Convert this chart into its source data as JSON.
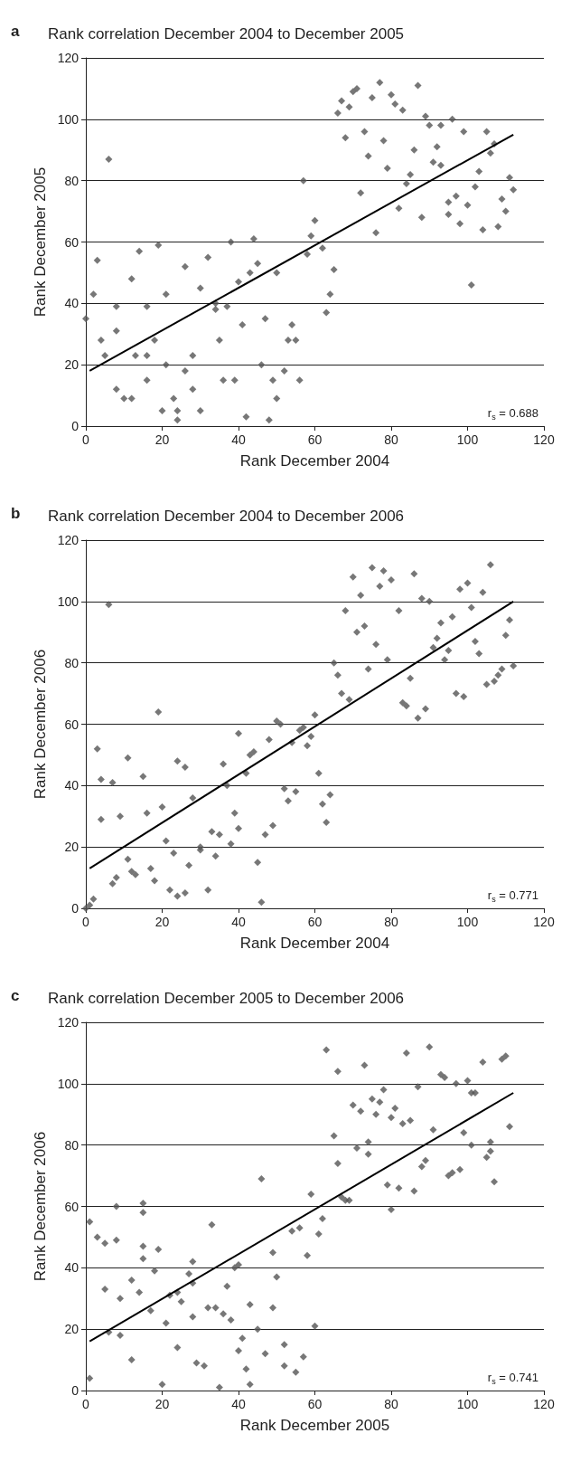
{
  "chart_data": [
    {
      "type": "scatter",
      "title": "Rank correlation December 2004 to December 2005",
      "xlabel": "Rank December 2004",
      "ylabel": "Rank December 2005",
      "annotations": [
        "a",
        "r$_{s}$ = 0.688"
      ],
      "xlim": [
        0,
        120
      ],
      "ylim": [
        0,
        120
      ],
      "xticks": [
        0,
        20,
        40,
        60,
        80,
        100,
        120
      ],
      "yticks": [
        0,
        20,
        40,
        60,
        80,
        100,
        120
      ],
      "grid": "y",
      "marker": "diamond",
      "series": [
        {
          "color": "#555555",
          "x": [
            0,
            2,
            3,
            4,
            5,
            6,
            8,
            8,
            8,
            10,
            12,
            12,
            13,
            14,
            16,
            16,
            16,
            18,
            19,
            20,
            21,
            21,
            23,
            24,
            24,
            26,
            26,
            28,
            28,
            30,
            30,
            32,
            34,
            34,
            35,
            36,
            37,
            38,
            39,
            40,
            41,
            42,
            43,
            44,
            45,
            46,
            47,
            48,
            49,
            50,
            50,
            52,
            53,
            54,
            55,
            56,
            57,
            58,
            59,
            60,
            62,
            63,
            64,
            65,
            66,
            67,
            68,
            69,
            70,
            71,
            72,
            73,
            74,
            75,
            76,
            77,
            78,
            79,
            80,
            81,
            82,
            83,
            84,
            85,
            86,
            87,
            88,
            89,
            90,
            91,
            92,
            93,
            93,
            95,
            95,
            96,
            97,
            98,
            99,
            100,
            101,
            102,
            103,
            104,
            105,
            106,
            107,
            108,
            109,
            110,
            111,
            112
          ],
          "values": [
            35,
            43,
            54,
            28,
            23,
            87,
            31,
            39,
            12,
            9,
            9,
            48,
            23,
            57,
            15,
            39,
            23,
            28,
            59,
            5,
            43,
            20,
            9,
            5,
            2,
            52,
            18,
            23,
            12,
            45,
            5,
            55,
            38,
            40,
            28,
            15,
            39,
            60,
            15,
            47,
            33,
            3,
            50,
            61,
            53,
            20,
            35,
            2,
            15,
            50,
            9,
            18,
            28,
            33,
            28,
            15,
            80,
            56,
            62,
            67,
            58,
            37,
            43,
            51,
            102,
            106,
            94,
            104,
            109,
            110,
            76,
            96,
            88,
            107,
            63,
            112,
            93,
            84,
            108,
            105,
            71,
            103,
            79,
            82,
            90,
            111,
            68,
            101,
            98,
            86,
            91,
            98,
            85,
            69,
            73,
            100,
            75,
            66,
            96,
            72,
            46,
            78,
            83,
            64,
            96,
            89,
            92,
            65,
            74,
            70,
            81,
            77
          ]
        },
        {
          "type": "line",
          "color": "#000000",
          "marker": "none",
          "x": [
            1,
            112
          ],
          "values": [
            18,
            95
          ]
        }
      ]
    },
    {
      "type": "scatter",
      "title": "Rank correlation December 2004 to December 2006",
      "xlabel": "Rank December 2004",
      "ylabel": "Rank December 2006",
      "annotations": [
        "b",
        "r$_{s}$ = 0.771"
      ],
      "xlim": [
        0,
        120
      ],
      "ylim": [
        0,
        120
      ],
      "xticks": [
        0,
        20,
        40,
        60,
        80,
        100,
        120
      ],
      "yticks": [
        0,
        20,
        40,
        60,
        80,
        100,
        120
      ],
      "grid": "y",
      "marker": "diamond",
      "series": [
        {
          "color": "#555555",
          "x": [
            0,
            1,
            2,
            3,
            4,
            4,
            6,
            7,
            7,
            8,
            9,
            11,
            11,
            12,
            13,
            15,
            16,
            17,
            18,
            19,
            20,
            21,
            22,
            23,
            24,
            24,
            26,
            26,
            27,
            28,
            30,
            30,
            32,
            33,
            34,
            35,
            36,
            37,
            38,
            39,
            40,
            40,
            42,
            43,
            44,
            45,
            46,
            47,
            48,
            49,
            50,
            51,
            52,
            53,
            54,
            55,
            56,
            57,
            58,
            59,
            60,
            61,
            62,
            63,
            64,
            65,
            66,
            67,
            68,
            69,
            70,
            71,
            72,
            73,
            74,
            75,
            76,
            77,
            78,
            79,
            80,
            82,
            83,
            84,
            85,
            86,
            87,
            88,
            89,
            90,
            91,
            92,
            93,
            94,
            95,
            96,
            97,
            98,
            99,
            100,
            101,
            102,
            103,
            104,
            105,
            106,
            107,
            108,
            109,
            110,
            111,
            112
          ],
          "values": [
            0,
            1,
            3,
            52,
            29,
            42,
            99,
            41,
            8,
            10,
            30,
            49,
            16,
            12,
            11,
            43,
            31,
            13,
            9,
            64,
            33,
            22,
            6,
            18,
            48,
            4,
            46,
            5,
            14,
            36,
            20,
            19,
            6,
            25,
            17,
            24,
            47,
            40,
            21,
            31,
            57,
            26,
            44,
            50,
            51,
            15,
            2,
            24,
            55,
            27,
            61,
            60,
            39,
            35,
            54,
            38,
            58,
            59,
            53,
            56,
            63,
            44,
            34,
            28,
            37,
            80,
            76,
            70,
            97,
            68,
            108,
            90,
            102,
            92,
            78,
            111,
            86,
            105,
            110,
            81,
            107,
            97,
            67,
            66,
            75,
            109,
            62,
            101,
            65,
            100,
            85,
            88,
            93,
            81,
            84,
            95,
            70,
            104,
            69,
            106,
            98,
            87,
            83,
            103,
            73,
            112,
            74,
            76,
            78,
            89,
            94,
            79
          ]
        },
        {
          "type": "line",
          "color": "#000000",
          "marker": "none",
          "x": [
            1,
            112
          ],
          "values": [
            13,
            100
          ]
        }
      ]
    },
    {
      "type": "scatter",
      "title": "Rank correlation December 2005 to December 2006",
      "xlabel": "Rank December 2005",
      "ylabel": "Rank December 2006",
      "annotations": [
        "c",
        "r$_{s}$ = 0.741"
      ],
      "xlim": [
        0,
        120
      ],
      "ylim": [
        0,
        120
      ],
      "xticks": [
        0,
        20,
        40,
        60,
        80,
        100,
        120
      ],
      "yticks": [
        0,
        20,
        40,
        60,
        80,
        100,
        120
      ],
      "grid": "y",
      "marker": "diamond",
      "series": [
        {
          "color": "#555555",
          "x": [
            1,
            1,
            3,
            5,
            5,
            6,
            8,
            8,
            9,
            9,
            12,
            12,
            14,
            15,
            15,
            15,
            15,
            17,
            18,
            19,
            20,
            21,
            22,
            24,
            24,
            25,
            27,
            28,
            28,
            28,
            29,
            31,
            32,
            33,
            34,
            35,
            36,
            37,
            38,
            39,
            40,
            40,
            41,
            42,
            43,
            43,
            45,
            46,
            47,
            49,
            49,
            50,
            52,
            52,
            54,
            55,
            56,
            57,
            58,
            59,
            60,
            61,
            62,
            63,
            65,
            66,
            66,
            67,
            68,
            69,
            70,
            71,
            72,
            73,
            74,
            74,
            75,
            76,
            77,
            78,
            79,
            80,
            80,
            81,
            82,
            83,
            84,
            85,
            86,
            87,
            88,
            89,
            90,
            91,
            93,
            94,
            95,
            96,
            97,
            98,
            99,
            100,
            101,
            101,
            102,
            104,
            105,
            106,
            106,
            107,
            109,
            110,
            111
          ],
          "values": [
            55,
            4,
            50,
            48,
            33,
            19,
            60,
            49,
            30,
            18,
            36,
            10,
            32,
            61,
            58,
            47,
            43,
            26,
            39,
            46,
            2,
            22,
            31,
            14,
            32,
            29,
            38,
            24,
            35,
            42,
            9,
            8,
            27,
            54,
            27,
            1,
            25,
            34,
            23,
            40,
            41,
            13,
            17,
            7,
            2,
            28,
            20,
            69,
            12,
            45,
            27,
            37,
            15,
            8,
            52,
            6,
            53,
            11,
            44,
            64,
            21,
            51,
            56,
            111,
            83,
            104,
            74,
            63,
            62,
            62,
            93,
            79,
            91,
            106,
            81,
            77,
            95,
            90,
            94,
            98,
            67,
            59,
            89,
            92,
            66,
            87,
            110,
            88,
            65,
            99,
            73,
            75,
            112,
            85,
            103,
            102,
            70,
            71,
            100,
            72,
            84,
            101,
            80,
            97,
            97,
            107,
            76,
            81,
            78,
            68,
            108,
            109,
            86
          ]
        },
        {
          "type": "line",
          "color": "#000000",
          "marker": "none",
          "x": [
            1,
            112
          ],
          "values": [
            16,
            97
          ]
        }
      ]
    }
  ]
}
